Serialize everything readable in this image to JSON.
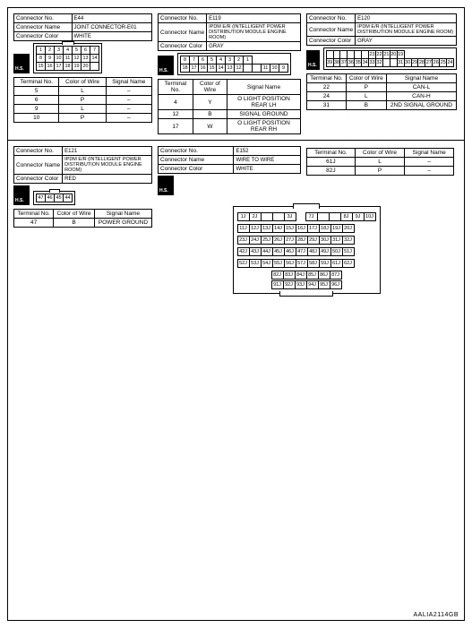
{
  "labels": {
    "connector_no": "Connector No.",
    "connector_name": "Connector Name",
    "connector_color": "Connector Color",
    "terminal_no": "Terminal No.",
    "color_of_wire": "Color of\nWire",
    "signal_name": "Signal Name",
    "hs": "H.S."
  },
  "e44": {
    "no": "E44",
    "name": "JOINT CONNECTOR-E01",
    "color": "WHITE",
    "pins_row1": [
      "1",
      "2",
      "3",
      "4",
      "5",
      "6",
      "7"
    ],
    "pins_row2": [
      "8",
      "9",
      "10",
      "11",
      "12",
      "13",
      "14"
    ],
    "pins_row3": [
      "15",
      "16",
      "17",
      "18",
      "19",
      "20",
      ""
    ],
    "signals": [
      {
        "t": "5",
        "c": "L",
        "s": "–"
      },
      {
        "t": "6",
        "c": "P",
        "s": "–"
      },
      {
        "t": "9",
        "c": "L",
        "s": "–"
      },
      {
        "t": "10",
        "c": "P",
        "s": "–"
      }
    ]
  },
  "e119": {
    "no": "E119",
    "name": "IPDM E/R (INTELLIGENT POWER DISTRIBUTION MODULE ENGINE ROOM)",
    "color": "GRAY",
    "pins_row1": [
      "8",
      "7",
      "6",
      "5",
      "4",
      "3",
      "2",
      "1"
    ],
    "pins_row2": [
      "18",
      "17",
      "16",
      "15",
      "14",
      "13",
      "12",
      "",
      "",
      "11",
      "10",
      "9"
    ],
    "signals": [
      {
        "t": "4",
        "c": "Y",
        "s": "O LIGHT POSITION REAR LH"
      },
      {
        "t": "12",
        "c": "B",
        "s": "SIGNAL GROUND"
      },
      {
        "t": "17",
        "c": "W",
        "s": "O LIGHT POSITION REAR RH"
      }
    ]
  },
  "e120": {
    "no": "E120",
    "name": "IPDM E/R (INTELLIGENT POWER DISTRIBUTION MODULE ENGINE ROOM)",
    "color": "GRAY",
    "pins_row1": [
      "",
      "",
      "",
      "",
      "",
      "",
      "23",
      "22",
      "21",
      "20",
      "19"
    ],
    "pins_row2": [
      "39",
      "38",
      "37",
      "36",
      "35",
      "34",
      "33",
      "32",
      "",
      "",
      "31",
      "30",
      "29",
      "28",
      "27",
      "26",
      "25",
      "24"
    ],
    "signals": [
      {
        "t": "22",
        "c": "P",
        "s": "CAN-L"
      },
      {
        "t": "24",
        "c": "L",
        "s": "CAN-H"
      },
      {
        "t": "31",
        "c": "B",
        "s": "2ND SIGNAL GROUND"
      }
    ]
  },
  "e121": {
    "no": "E121",
    "name": "IPDM E/R (INTELLIGENT POWER DISTRIBUTION MODULE ENGINE ROOM)",
    "color": "RED",
    "pins": [
      "47",
      "46",
      "45",
      "44"
    ],
    "signals": [
      {
        "t": "47",
        "c": "B",
        "s": "POWER GROUND"
      }
    ]
  },
  "e152": {
    "no": "E152",
    "name": "WIRE TO WIRE",
    "color": "WHITE",
    "signals": [
      {
        "t": "61J",
        "c": "L",
        "s": "–"
      },
      {
        "t": "82J",
        "c": "P",
        "s": "–"
      }
    ],
    "bigpins": {
      "r1": [
        "1J",
        "2J",
        "",
        "",
        "3J"
      ],
      "r2": [
        "7J",
        "",
        "",
        "8J",
        "9J",
        "10J"
      ],
      "r3": [
        "11J",
        "12J",
        "13J",
        "14J",
        "15J",
        "16J",
        "17J",
        "18J",
        "19J",
        "20J"
      ],
      "r4": [
        "23J",
        "24J",
        "25J",
        "26J",
        "27J",
        "28J",
        "29J",
        "30J",
        "31J",
        "32J"
      ],
      "r5": [
        "42J",
        "43J",
        "44J",
        "45J",
        "46J",
        "47J",
        "48J",
        "49J",
        "50J",
        "51J"
      ],
      "r6": [
        "52J",
        "53J",
        "54J",
        "55J",
        "56J",
        "57J",
        "58J",
        "59J",
        "61J",
        "62J"
      ],
      "r7": [
        "82J",
        "83J",
        "84J",
        "85J",
        "86J",
        "87J"
      ],
      "r8": [
        "91J",
        "92J",
        "93J",
        "94J",
        "95J",
        "96J"
      ]
    }
  },
  "footer": "AALIA2114GB"
}
